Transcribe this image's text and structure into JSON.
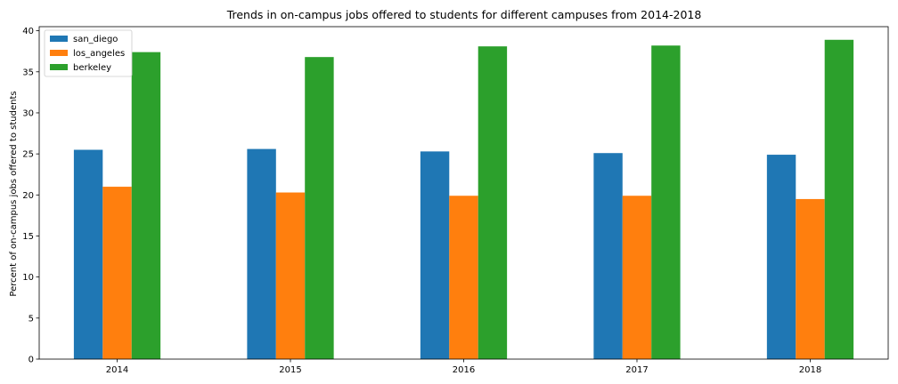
{
  "chart_data": {
    "type": "bar",
    "title": "Trends in on-campus jobs offered to students for different campuses from 2014-2018",
    "xlabel": "",
    "ylabel": "Percent of on-campus jobs offered to students",
    "categories": [
      "2014",
      "2015",
      "2016",
      "2017",
      "2018"
    ],
    "series": [
      {
        "name": "san_diego",
        "color": "#1f77b4",
        "values": [
          25.5,
          25.6,
          25.3,
          25.1,
          24.9
        ]
      },
      {
        "name": "los_angeles",
        "color": "#ff7f0e",
        "values": [
          21.0,
          20.3,
          19.9,
          19.9,
          19.5
        ]
      },
      {
        "name": "berkeley",
        "color": "#2ca02c",
        "values": [
          37.4,
          36.8,
          38.1,
          38.2,
          38.9
        ]
      }
    ],
    "ylim": [
      0,
      40.5
    ],
    "yticks": [
      "0",
      "5",
      "10",
      "15",
      "20",
      "25",
      "30",
      "35",
      "40"
    ],
    "legend_position": "top-left",
    "grid": false
  }
}
